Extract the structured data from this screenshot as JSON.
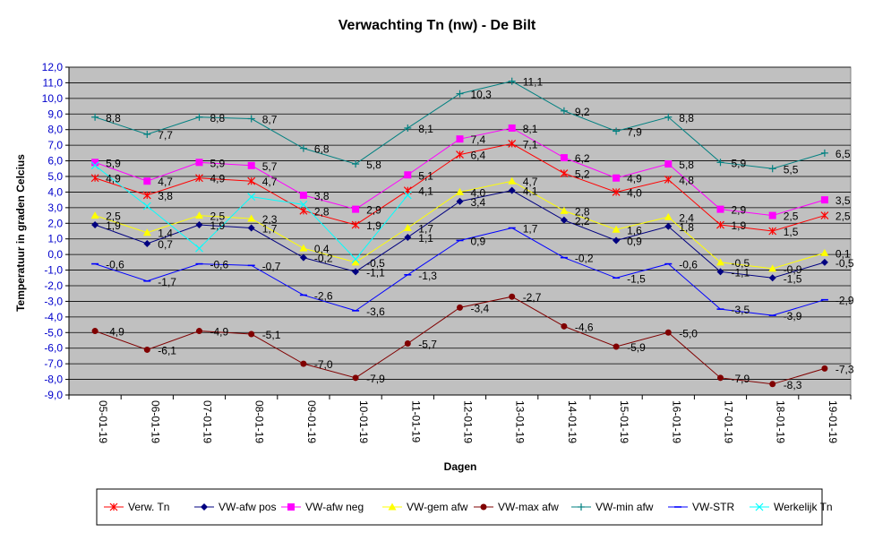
{
  "chart_data": {
    "type": "line",
    "title": "Verwachting Tn (nw) - De Bilt",
    "xlabel": "Dagen",
    "ylabel": "Temperatuur in graden Celcius",
    "ylim": [
      -9,
      12
    ],
    "ytick_step": 1,
    "grid": true,
    "legend_position": "bottom",
    "plot_background": "#c0c0c0",
    "y_tick_color": "#0000cc",
    "categories": [
      "05-01-19",
      "06-01-19",
      "07-01-19",
      "08-01-19",
      "09-01-19",
      "10-01-19",
      "11-01-19",
      "12-01-19",
      "13-01-19",
      "14-01-19",
      "15-01-19",
      "16-01-19",
      "17-01-19",
      "18-01-19",
      "19-01-19"
    ],
    "series": [
      {
        "name": "Verw. Tn",
        "color": "#ff0000",
        "marker": "star",
        "label_values": true,
        "values": [
          4.9,
          3.8,
          4.9,
          4.7,
          2.8,
          1.9,
          4.1,
          6.4,
          7.1,
          5.2,
          4.0,
          4.8,
          1.9,
          1.5,
          2.5
        ]
      },
      {
        "name": "VW-afw pos",
        "color": "#000080",
        "marker": "diamond",
        "label_values": true,
        "values": [
          1.9,
          0.7,
          1.9,
          1.7,
          -0.2,
          -1.1,
          1.1,
          3.4,
          4.1,
          2.2,
          0.9,
          1.8,
          -1.1,
          -1.5,
          -0.5
        ]
      },
      {
        "name": "VW-afw neg",
        "color": "#ff00ff",
        "marker": "square",
        "label_values": true,
        "values": [
          5.9,
          4.7,
          5.9,
          5.7,
          3.8,
          2.9,
          5.1,
          7.4,
          8.1,
          6.2,
          4.9,
          5.8,
          2.9,
          2.5,
          3.5
        ]
      },
      {
        "name": "VW-gem afw",
        "color": "#ffff00",
        "marker": "triangle",
        "label_values": true,
        "values": [
          2.5,
          1.4,
          2.5,
          2.3,
          0.4,
          -0.5,
          1.7,
          4.0,
          4.7,
          2.8,
          1.6,
          2.4,
          -0.5,
          -0.9,
          0.1
        ]
      },
      {
        "name": "VW-max afw",
        "color": "#800000",
        "marker": "circle",
        "label_values": true,
        "values": [
          -4.9,
          -6.1,
          -4.9,
          -5.1,
          -7.0,
          -7.9,
          -5.7,
          -3.4,
          -2.7,
          -4.6,
          -5.9,
          -5.0,
          -7.9,
          -8.3,
          -7.3
        ]
      },
      {
        "name": "VW-min afw",
        "color": "#008080",
        "marker": "plus",
        "label_values": true,
        "values": [
          8.8,
          7.7,
          8.8,
          8.7,
          6.8,
          5.8,
          8.1,
          10.3,
          11.1,
          9.2,
          7.9,
          8.8,
          5.9,
          5.5,
          6.5
        ]
      },
      {
        "name": "VW-STR",
        "color": "#0000ff",
        "marker": "dash",
        "label_values": true,
        "values": [
          -0.6,
          -1.7,
          -0.6,
          -0.7,
          -2.6,
          -3.6,
          -1.3,
          0.9,
          1.7,
          -0.2,
          -1.5,
          -0.6,
          -3.5,
          -3.9,
          -2.9
        ]
      },
      {
        "name": "Werkelijk Tn",
        "color": "#00ffff",
        "marker": "x",
        "label_values": false,
        "values": [
          5.7,
          3.1,
          0.4,
          3.7,
          3.2,
          -0.3,
          3.8,
          null,
          null,
          null,
          null,
          null,
          null,
          null,
          null
        ]
      }
    ]
  }
}
